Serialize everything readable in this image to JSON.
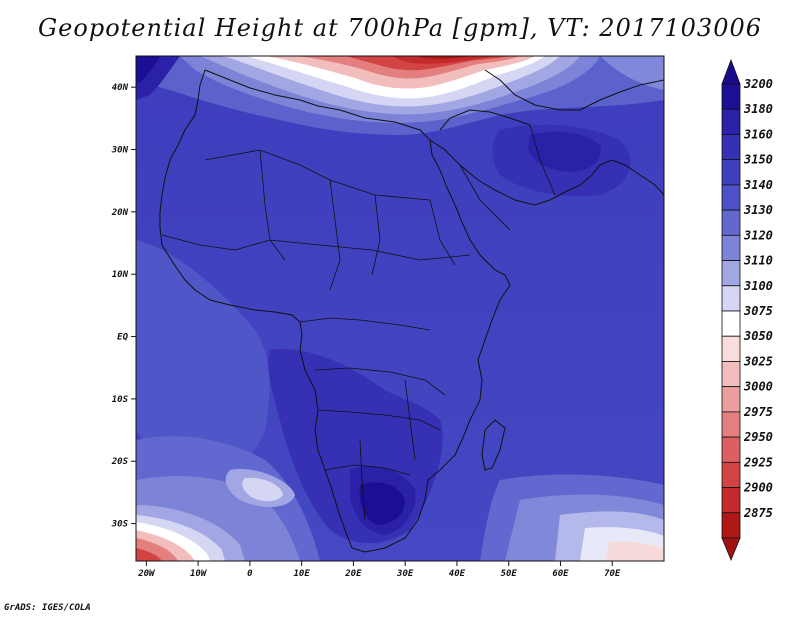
{
  "title": "Geopotential Height at 700hPa [gpm], VT: 2017103006",
  "credit": "GrADS: IGES/COLA",
  "map": {
    "lat_ticks": [
      {
        "label": "40N",
        "lat": 40
      },
      {
        "label": "30N",
        "lat": 30
      },
      {
        "label": "20N",
        "lat": 20
      },
      {
        "label": "10N",
        "lat": 10
      },
      {
        "label": "EQ",
        "lat": 0
      },
      {
        "label": "10S",
        "lat": -10
      },
      {
        "label": "20S",
        "lat": -20
      },
      {
        "label": "30S",
        "lat": -30
      }
    ],
    "lon_ticks": [
      {
        "label": "20W",
        "lon": -20
      },
      {
        "label": "10W",
        "lon": -10
      },
      {
        "label": "0",
        "lon": 0
      },
      {
        "label": "10E",
        "lon": 10
      },
      {
        "label": "20E",
        "lon": 20
      },
      {
        "label": "30E",
        "lon": 30
      },
      {
        "label": "40E",
        "lon": 40
      },
      {
        "label": "50E",
        "lon": 50
      },
      {
        "label": "60E",
        "lon": 60
      },
      {
        "label": "70E",
        "lon": 70
      }
    ],
    "lon_range": [
      -22,
      80
    ],
    "lat_range": [
      -36,
      45
    ]
  },
  "colorbar": {
    "levels": [
      {
        "label": "3200",
        "color": "#1c0f96"
      },
      {
        "label": "3180",
        "color": "#2a21a8"
      },
      {
        "label": "3160",
        "color": "#3530b4"
      },
      {
        "label": "3150",
        "color": "#3f3fbe"
      },
      {
        "label": "3140",
        "color": "#4d52c6"
      },
      {
        "label": "3130",
        "color": "#6268ce"
      },
      {
        "label": "3120",
        "color": "#7d84d8"
      },
      {
        "label": "3110",
        "color": "#a2a7e4"
      },
      {
        "label": "3100",
        "color": "#d4d6f3"
      },
      {
        "label": "3075",
        "color": "#ffffff"
      },
      {
        "label": "3050",
        "color": "#f9dcdc"
      },
      {
        "label": "3025",
        "color": "#f2bdbd"
      },
      {
        "label": "3000",
        "color": "#ec9e9e"
      },
      {
        "label": "2975",
        "color": "#e47f80"
      },
      {
        "label": "2950",
        "color": "#dc6061"
      },
      {
        "label": "2925",
        "color": "#d24344"
      },
      {
        "label": "2900",
        "color": "#c42a2c"
      },
      {
        "label": "2875",
        "color": "#b01818"
      }
    ],
    "top_arrow_color": "#190c8c",
    "bottom_arrow_color": "#a01212"
  }
}
